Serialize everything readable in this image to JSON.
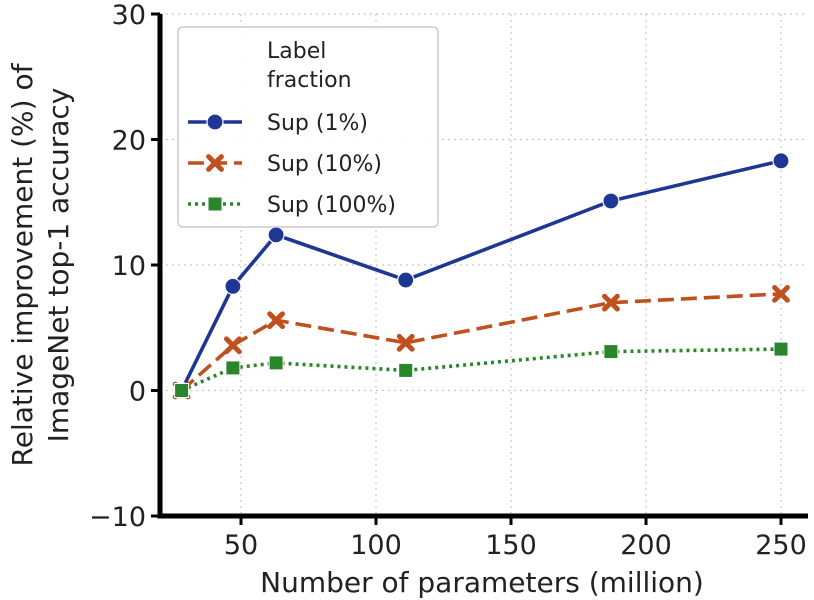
{
  "chart_data": {
    "type": "line",
    "title": "",
    "xlabel": "Number of parameters (million)",
    "ylabel": [
      "Relative improvement (%) of",
      "ImageNet top-1 accuracy"
    ],
    "xlim": [
      20,
      260
    ],
    "ylim": [
      -10,
      30
    ],
    "xticks": [
      50,
      100,
      150,
      200,
      250
    ],
    "yticks": [
      -10,
      0,
      10,
      20,
      30
    ],
    "xtick_labels": [
      "50",
      "100",
      "150",
      "200",
      "250"
    ],
    "ytick_labels": [
      "−10",
      "0",
      "10",
      "20",
      "30"
    ],
    "grid": true,
    "legend": {
      "title": [
        "Label",
        "fraction"
      ],
      "placement": "upper-left"
    },
    "x": [
      28,
      47,
      63,
      111,
      187,
      250
    ],
    "series": [
      {
        "name": "Sup (1%)",
        "values": [
          0,
          8.3,
          12.4,
          8.8,
          15.1,
          18.3
        ],
        "color": "#1f3794",
        "marker": "circle",
        "line_style": "solid"
      },
      {
        "name": "Sup (10%)",
        "values": [
          0,
          3.6,
          5.6,
          3.8,
          7.0,
          7.7
        ],
        "color": "#c0501e",
        "marker": "x",
        "line_style": "dashed"
      },
      {
        "name": "Sup (100%)",
        "values": [
          0,
          1.8,
          2.2,
          1.6,
          3.1,
          3.3
        ],
        "color": "#2a862a",
        "marker": "square",
        "line_style": "dotted"
      }
    ]
  }
}
